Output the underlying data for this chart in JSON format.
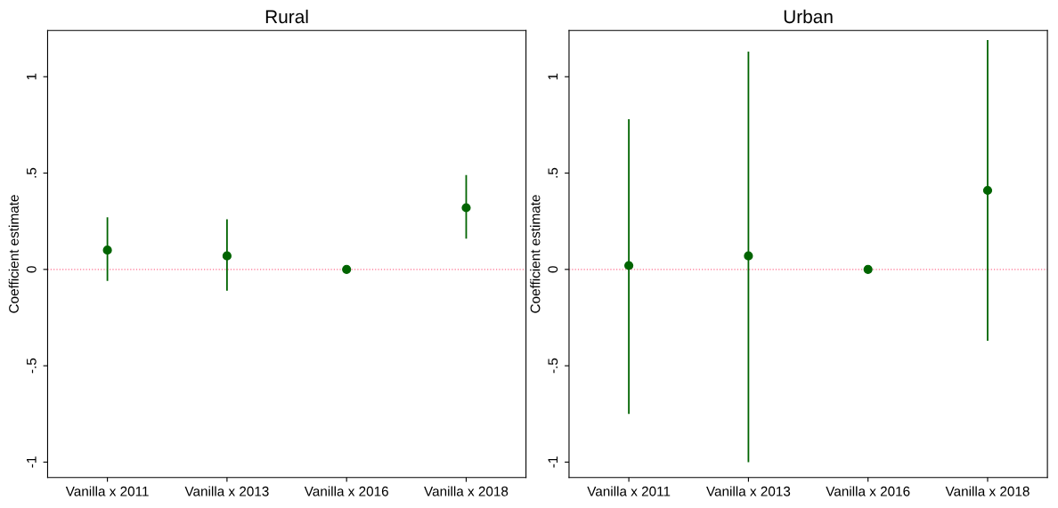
{
  "chart_data": [
    {
      "type": "scatter",
      "title": "Rural",
      "ylabel": "Coefficient estimate",
      "categories": [
        "Vanilla x 2011",
        "Vanilla x 2013",
        "Vanilla x 2016",
        "Vanilla x 2018"
      ],
      "series": [
        {
          "color": "#006400",
          "values": [
            0.1,
            0.07,
            0,
            0.32
          ],
          "errors": [
            [
              -0.06,
              0.27
            ],
            [
              -0.11,
              0.26
            ],
            null,
            [
              0.16,
              0.49
            ]
          ]
        }
      ],
      "ylim": [
        -1.08,
        1.24
      ],
      "yticks": [
        {
          "value": -1,
          "label": "-1"
        },
        {
          "value": -0.5,
          "label": "-.5"
        },
        0,
        {
          "value": 0.5,
          "label": ".5"
        },
        1
      ],
      "ref_lines": [
        {
          "axis": "y",
          "value": 0,
          "color": "#ff6f8f",
          "line_style": "dotted"
        }
      ],
      "marker": "circle",
      "grid": false,
      "legend": false
    },
    {
      "type": "scatter",
      "title": "Urban",
      "ylabel": "Coefficient estimate",
      "categories": [
        "Vanilla x 2011",
        "Vanilla x 2013",
        "Vanilla x 2016",
        "Vanilla x 2018"
      ],
      "series": [
        {
          "color": "#006400",
          "values": [
            0.02,
            0.07,
            0,
            0.41
          ],
          "errors": [
            [
              -0.75,
              0.78
            ],
            [
              -1.0,
              1.13
            ],
            null,
            [
              -0.37,
              1.19
            ]
          ]
        }
      ],
      "ylim": [
        -1.08,
        1.24
      ],
      "yticks": [
        {
          "value": -1,
          "label": "-1"
        },
        {
          "value": -0.5,
          "label": "-.5"
        },
        0,
        {
          "value": 0.5,
          "label": ".5"
        },
        1
      ],
      "ref_lines": [
        {
          "axis": "y",
          "value": 0,
          "color": "#ff6f8f",
          "line_style": "dotted"
        }
      ],
      "marker": "circle",
      "grid": false,
      "legend": false
    }
  ]
}
